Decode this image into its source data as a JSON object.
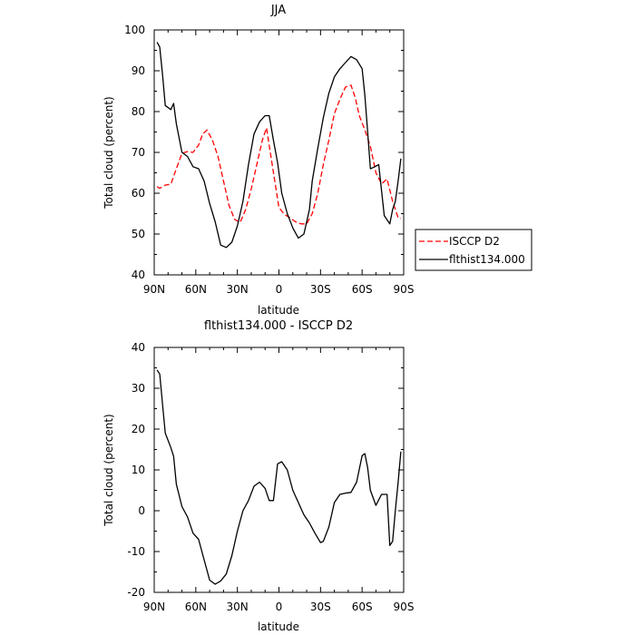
{
  "chart_data": [
    {
      "type": "line",
      "title": "JJA",
      "xlabel": "latitude",
      "ylabel": "Total cloud (percent)",
      "xlim": [
        90,
        -90
      ],
      "ylim": [
        40,
        100
      ],
      "xticks": [
        90,
        60,
        30,
        0,
        -30,
        -60,
        -90
      ],
      "xtick_labels": [
        "90N",
        "60N",
        "30N",
        "0",
        "30S",
        "60S",
        "90S"
      ],
      "yticks": [
        40,
        50,
        60,
        70,
        80,
        90,
        100
      ],
      "ytick_labels": [
        "40",
        "50",
        "60",
        "70",
        "80",
        "90",
        "100"
      ],
      "legend": {
        "placement": "right"
      },
      "series": [
        {
          "name": "ISCCP D2",
          "color": "#ff0000",
          "dash": "dashed",
          "x": [
            88,
            86,
            82,
            78,
            74,
            70,
            66,
            62,
            58,
            55,
            52,
            48,
            44,
            40,
            36,
            32,
            28,
            24,
            20,
            16,
            12,
            9,
            6,
            3,
            0,
            -4,
            -8,
            -12,
            -16,
            -20,
            -24,
            -28,
            -32,
            -36,
            -40,
            -44,
            -48,
            -52,
            -55,
            -58,
            -62,
            -66,
            -70,
            -74,
            -78,
            -82,
            -86,
            -88
          ],
          "values": [
            61.6,
            61.2,
            62,
            62.2,
            66,
            69.8,
            70.2,
            70,
            71.8,
            74.5,
            75.5,
            73,
            69,
            63,
            57,
            53.6,
            52.8,
            56,
            61,
            67,
            73,
            76,
            69.5,
            63,
            56.5,
            54.8,
            54,
            53,
            52.5,
            52.5,
            55,
            60,
            67,
            73,
            79.5,
            83,
            86,
            86.5,
            83.5,
            79,
            75.5,
            71.5,
            65,
            62.3,
            63.5,
            58,
            54,
            53.8
          ]
        },
        {
          "name": "flthist134.000",
          "color": "#000000",
          "dash": "solid",
          "x": [
            88,
            86,
            84,
            82,
            78,
            76,
            74,
            70,
            66,
            62,
            58,
            54,
            50,
            46,
            42,
            38,
            34,
            30,
            26,
            22,
            18,
            14,
            10,
            7,
            4,
            1,
            -2,
            -6,
            -10,
            -14,
            -18,
            -22,
            -24,
            -28,
            -32,
            -36,
            -40,
            -44,
            -48,
            -52,
            -56,
            -60,
            -62,
            -64,
            -66,
            -68,
            -72,
            -76,
            -80,
            -82,
            -84,
            -86,
            -88
          ],
          "values": [
            97,
            95.8,
            89,
            81.5,
            80.5,
            82,
            77,
            70,
            69,
            66.5,
            66,
            63,
            57.5,
            53,
            47.3,
            46.7,
            48,
            52,
            58,
            67,
            74.5,
            77.5,
            79,
            79,
            73,
            67.5,
            60,
            55,
            51.5,
            49,
            50,
            56,
            63,
            71,
            78.5,
            84.5,
            88.5,
            90.5,
            92,
            93.5,
            92.7,
            90.5,
            84,
            75,
            66,
            66.3,
            67,
            54.5,
            52.5,
            56,
            58,
            63,
            68.5
          ]
        }
      ]
    },
    {
      "type": "line",
      "title": "flthist134.000 - ISCCP D2",
      "xlabel": "latitude",
      "ylabel": "Total cloud (percent)",
      "xlim": [
        90,
        -90
      ],
      "ylim": [
        -20,
        40
      ],
      "xticks": [
        90,
        60,
        30,
        0,
        -30,
        -60,
        -90
      ],
      "xtick_labels": [
        "90N",
        "60N",
        "30N",
        "0",
        "30S",
        "60S",
        "90S"
      ],
      "yticks": [
        -20,
        -10,
        0,
        10,
        20,
        30,
        40
      ],
      "ytick_labels": [
        "-20",
        "-10",
        "0",
        "10",
        "20",
        "30",
        "40"
      ],
      "series": [
        {
          "color": "#000000",
          "dash": "solid",
          "x": [
            88,
            86,
            84,
            82,
            78,
            76,
            74,
            70,
            66,
            62,
            58,
            54,
            50,
            46,
            42,
            38,
            34,
            30,
            26,
            22,
            18,
            14,
            10,
            7,
            4,
            1,
            -2,
            -6,
            -10,
            -14,
            -18,
            -22,
            -26,
            -30,
            -32,
            -36,
            -40,
            -44,
            -48,
            -52,
            -56,
            -60,
            -62,
            -64,
            -66,
            -70,
            -74,
            -78,
            -80,
            -82,
            -84,
            -86,
            -88
          ],
          "values": [
            34.5,
            33.5,
            26,
            19,
            15.5,
            13.3,
            6.5,
            1,
            -1.5,
            -5.5,
            -7,
            -12,
            -17,
            -18,
            -17.2,
            -15.5,
            -11,
            -5,
            0,
            2.5,
            6,
            7,
            5.5,
            2.5,
            2.5,
            11.5,
            12,
            10,
            5,
            2,
            -1,
            -3,
            -5.5,
            -7.8,
            -7.5,
            -4,
            2,
            4,
            4.3,
            4.5,
            7,
            13.5,
            14,
            10.5,
            5,
            1.3,
            4,
            4,
            -8.5,
            -7.5,
            0,
            7,
            14.5
          ]
        }
      ]
    }
  ]
}
